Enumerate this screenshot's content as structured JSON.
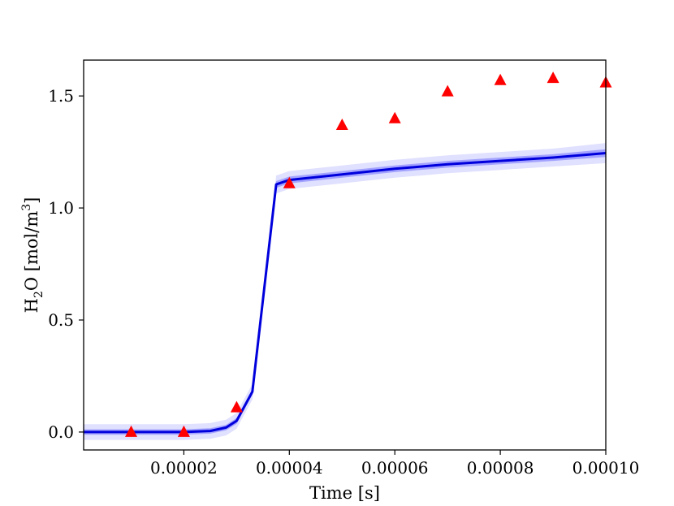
{
  "chart_data": {
    "type": "line",
    "xlabel": "Time [s]",
    "ylabel": "H2O [mol/m3]",
    "xlim": [
      1e-06,
      0.0001
    ],
    "ylim": [
      -0.08,
      1.66
    ],
    "x_ticks": [
      2e-05,
      4e-05,
      6e-05,
      8e-05,
      0.0001
    ],
    "x_tick_labels": [
      "0.00002",
      "0.00004",
      "0.00006",
      "0.00008",
      "0.00010"
    ],
    "y_ticks": [
      0.0,
      0.5,
      1.0,
      1.5
    ],
    "y_tick_labels": [
      "0.0",
      "0.5",
      "1.0",
      "1.5"
    ],
    "grid": false,
    "series": [
      {
        "kind": "line",
        "color": "#0000dd",
        "x": [
          1e-06,
          2e-05,
          2.5e-05,
          2.8e-05,
          3e-05,
          3.3e-05,
          3.75e-05,
          4e-05,
          5e-05,
          6e-05,
          7e-05,
          8e-05,
          9e-05,
          0.0001
        ],
        "y": [
          0.0,
          0.0,
          0.005,
          0.02,
          0.05,
          0.18,
          1.105,
          1.125,
          1.15,
          1.175,
          1.195,
          1.21,
          1.225,
          1.245
        ]
      },
      {
        "kind": "band",
        "color": "#3030ff",
        "opacity": 0.35,
        "x": [
          1e-06,
          2e-05,
          2.5e-05,
          2.8e-05,
          3e-05,
          3.3e-05,
          3.75e-05,
          4e-05,
          5e-05,
          6e-05,
          7e-05,
          8e-05,
          9e-05,
          0.0001
        ],
        "lower": [
          -0.012,
          -0.012,
          -0.007,
          0.008,
          0.037,
          0.167,
          1.09,
          1.11,
          1.135,
          1.16,
          1.18,
          1.195,
          1.21,
          1.228
        ],
        "upper": [
          0.012,
          0.012,
          0.017,
          0.032,
          0.063,
          0.193,
          1.12,
          1.14,
          1.165,
          1.19,
          1.21,
          1.225,
          1.24,
          1.262
        ]
      },
      {
        "kind": "band",
        "color": "#7070ff",
        "opacity": 0.22,
        "x": [
          1e-06,
          2e-05,
          2.5e-05,
          2.8e-05,
          3e-05,
          3.3e-05,
          3.75e-05,
          4e-05,
          5e-05,
          6e-05,
          7e-05,
          8e-05,
          9e-05,
          0.0001
        ],
        "lower": [
          -0.035,
          -0.035,
          -0.03,
          -0.015,
          0.015,
          0.145,
          1.065,
          1.085,
          1.11,
          1.135,
          1.155,
          1.17,
          1.185,
          1.2
        ],
        "upper": [
          0.035,
          0.035,
          0.04,
          0.055,
          0.085,
          0.215,
          1.145,
          1.165,
          1.19,
          1.215,
          1.235,
          1.25,
          1.265,
          1.29
        ]
      },
      {
        "kind": "scatter",
        "marker": "triangle",
        "color": "#ff0000",
        "x": [
          1e-05,
          2e-05,
          3e-05,
          4e-05,
          5e-05,
          6e-05,
          7e-05,
          8e-05,
          9e-05,
          0.0001
        ],
        "y": [
          0.0,
          0.0,
          0.11,
          1.11,
          1.37,
          1.4,
          1.52,
          1.57,
          1.58,
          1.56
        ]
      }
    ]
  }
}
